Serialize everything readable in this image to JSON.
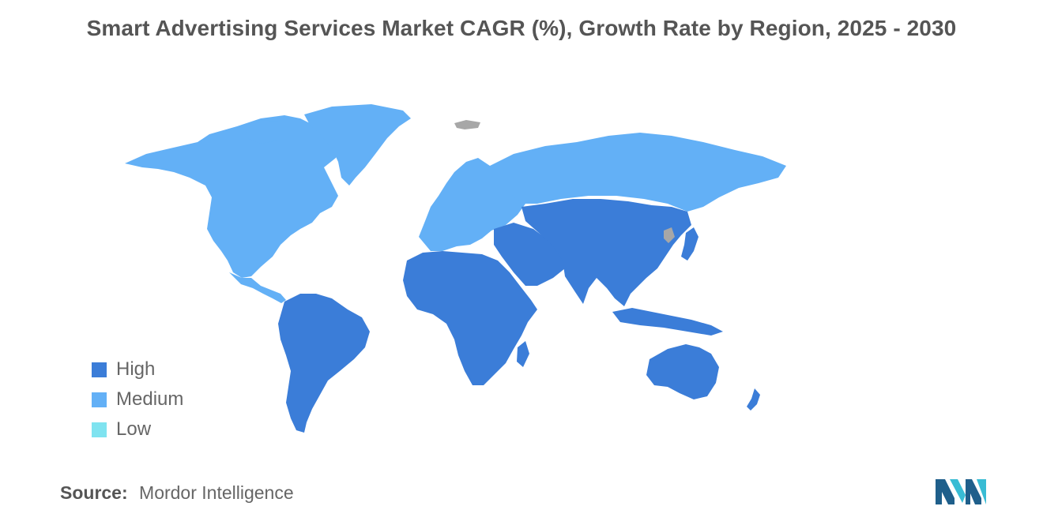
{
  "title": "Smart Advertising Services Market CAGR (%), Growth Rate by Region, 2025 - 2030",
  "legend": {
    "items": [
      {
        "label": "High",
        "color": "#3b7dd8"
      },
      {
        "label": "Medium",
        "color": "#63b0f6"
      },
      {
        "label": "Low",
        "color": "#7fe3f0"
      }
    ]
  },
  "regions": {
    "high": [
      "Asia-Pacific",
      "South America",
      "Africa",
      "Middle East"
    ],
    "medium": [
      "North America",
      "Europe"
    ],
    "low": []
  },
  "colors": {
    "high": "#3b7dd8",
    "medium": "#63b0f6",
    "low": "#7fe3f0",
    "no_data": "#a7a7a7"
  },
  "source": {
    "label": "Source:",
    "value": "Mordor Intelligence"
  },
  "logo": {
    "icon": "mordor-intelligence-logo"
  }
}
